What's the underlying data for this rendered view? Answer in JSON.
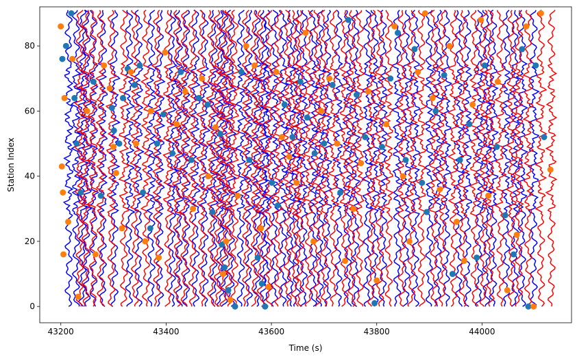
{
  "chart_data": {
    "type": "scatter",
    "title": "",
    "xlabel": "Time (s)",
    "ylabel": "Station Index",
    "xlim": [
      43160,
      44170
    ],
    "ylim": [
      -5,
      92
    ],
    "xticks": [
      43200,
      43400,
      43600,
      43800,
      44000
    ],
    "yticks": [
      0,
      20,
      40,
      60,
      80
    ],
    "grid": false,
    "legend": "none",
    "colors": {
      "waveform_a": "#0000ff",
      "waveform_b": "#ff0000",
      "pick_a": "#1f77b4",
      "pick_b": "#ff7f0e"
    },
    "series": [
      {
        "kind": "waveforms",
        "color_key": "waveform_a",
        "trace_start_y": 0,
        "trace_end_y": 91,
        "x": [
          43215,
          43229,
          43241,
          43249,
          43262,
          43280,
          43302,
          43330,
          43348,
          43372,
          43388,
          43411,
          43424,
          43438,
          43456,
          43473,
          43490,
          43503,
          43511,
          43523,
          43542,
          43557,
          43572,
          43585,
          43591,
          43606,
          43622,
          43636,
          43648,
          43661,
          43679,
          43692,
          43706,
          43727,
          43745,
          43759,
          43782,
          43796,
          43812,
          43839,
          43856,
          43873,
          43900,
          43916,
          43932,
          43956,
          43972,
          43994,
          44008,
          44021,
          44046,
          44062,
          44076,
          44098
        ]
      },
      {
        "kind": "waveforms",
        "color_key": "waveform_b",
        "trace_start_y": 0,
        "trace_end_y": 91,
        "x": [
          43236,
          43247,
          43261,
          43276,
          43296,
          43320,
          43341,
          43362,
          43383,
          43404,
          43421,
          43435,
          43450,
          43468,
          43486,
          43498,
          43509,
          43519,
          43530,
          43552,
          43568,
          43580,
          43596,
          43613,
          43631,
          43645,
          43655,
          43671,
          43687,
          43701,
          43718,
          43739,
          43753,
          43768,
          43790,
          43806,
          43823,
          43848,
          43866,
          43885,
          43909,
          43925,
          43946,
          43964,
          43986,
          44003,
          44016,
          44035,
          44056,
          44070,
          44088,
          44112,
          44132
        ]
      },
      {
        "kind": "picks",
        "color_key": "pick_a",
        "points": [
          [
            43203,
            76
          ],
          [
            43210,
            80
          ],
          [
            43220,
            90
          ],
          [
            43226,
            64
          ],
          [
            43230,
            50
          ],
          [
            43238,
            35
          ],
          [
            43262,
            69
          ],
          [
            43276,
            34
          ],
          [
            43297,
            61
          ],
          [
            43301,
            54
          ],
          [
            43311,
            50
          ],
          [
            43318,
            64
          ],
          [
            43327,
            73
          ],
          [
            43340,
            68
          ],
          [
            43350,
            74
          ],
          [
            43356,
            35
          ],
          [
            43370,
            24
          ],
          [
            43383,
            50
          ],
          [
            43395,
            59
          ],
          [
            43412,
            47
          ],
          [
            43428,
            72
          ],
          [
            43448,
            45
          ],
          [
            43462,
            64
          ],
          [
            43479,
            62
          ],
          [
            43488,
            29
          ],
          [
            43503,
            53
          ],
          [
            43506,
            19
          ],
          [
            43511,
            12
          ],
          [
            43518,
            5
          ],
          [
            43531,
            0
          ],
          [
            43543,
            72
          ],
          [
            43558,
            45
          ],
          [
            43574,
            15
          ],
          [
            43582,
            7
          ],
          [
            43588,
            0
          ],
          [
            43601,
            38
          ],
          [
            43612,
            31
          ],
          [
            43625,
            62
          ],
          [
            43640,
            52
          ],
          [
            43655,
            69
          ],
          [
            43668,
            58
          ],
          [
            43682,
            47
          ],
          [
            43700,
            50
          ],
          [
            43716,
            68
          ],
          [
            43731,
            35
          ],
          [
            43746,
            88
          ],
          [
            43762,
            65
          ],
          [
            43778,
            52
          ],
          [
            43796,
            1
          ],
          [
            43810,
            49
          ],
          [
            43826,
            70
          ],
          [
            43840,
            84
          ],
          [
            43855,
            45
          ],
          [
            43872,
            79
          ],
          [
            43886,
            38
          ],
          [
            43895,
            29
          ],
          [
            43912,
            60
          ],
          [
            43928,
            71
          ],
          [
            43944,
            10
          ],
          [
            43958,
            45
          ],
          [
            43976,
            56
          ],
          [
            43990,
            15
          ],
          [
            44005,
            74
          ],
          [
            44028,
            49
          ],
          [
            44044,
            28
          ],
          [
            44060,
            16
          ],
          [
            44076,
            79
          ],
          [
            44088,
            0
          ],
          [
            44102,
            74
          ],
          [
            44118,
            52
          ]
        ]
      },
      {
        "kind": "picks",
        "color_key": "pick_b",
        "points": [
          [
            43200,
            86
          ],
          [
            43202,
            43
          ],
          [
            43204,
            35
          ],
          [
            43205,
            16
          ],
          [
            43207,
            64
          ],
          [
            43214,
            26
          ],
          [
            43222,
            76
          ],
          [
            43233,
            3
          ],
          [
            43250,
            60
          ],
          [
            43266,
            16
          ],
          [
            43282,
            74
          ],
          [
            43293,
            67
          ],
          [
            43300,
            49
          ],
          [
            43305,
            41
          ],
          [
            43316,
            24
          ],
          [
            43333,
            72
          ],
          [
            43343,
            50
          ],
          [
            43360,
            20
          ],
          [
            43371,
            60
          ],
          [
            43386,
            15
          ],
          [
            43398,
            78
          ],
          [
            43420,
            56
          ],
          [
            43436,
            66
          ],
          [
            43451,
            30
          ],
          [
            43468,
            70
          ],
          [
            43480,
            40
          ],
          [
            43494,
            55
          ],
          [
            43508,
            10
          ],
          [
            43514,
            20
          ],
          [
            43522,
            2
          ],
          [
            43536,
            34
          ],
          [
            43552,
            80
          ],
          [
            43568,
            74
          ],
          [
            43580,
            24
          ],
          [
            43594,
            6
          ],
          [
            43609,
            72
          ],
          [
            43620,
            52
          ],
          [
            43634,
            46
          ],
          [
            43648,
            38
          ],
          [
            43665,
            84
          ],
          [
            43680,
            20
          ],
          [
            43695,
            60
          ],
          [
            43710,
            70
          ],
          [
            43725,
            50
          ],
          [
            43740,
            14
          ],
          [
            43756,
            30
          ],
          [
            43770,
            44
          ],
          [
            43784,
            66
          ],
          [
            43800,
            8
          ],
          [
            43818,
            56
          ],
          [
            43834,
            86
          ],
          [
            43850,
            40
          ],
          [
            43862,
            20
          ],
          [
            43878,
            72
          ],
          [
            43892,
            90
          ],
          [
            43906,
            64
          ],
          [
            43920,
            36
          ],
          [
            43938,
            80
          ],
          [
            43952,
            26
          ],
          [
            43966,
            14
          ],
          [
            43982,
            62
          ],
          [
            43998,
            88
          ],
          [
            44012,
            34
          ],
          [
            44030,
            69
          ],
          [
            44048,
            5
          ],
          [
            44066,
            22
          ],
          [
            44084,
            86
          ],
          [
            44098,
            0
          ],
          [
            44112,
            90
          ],
          [
            44130,
            42
          ]
        ]
      }
    ]
  }
}
